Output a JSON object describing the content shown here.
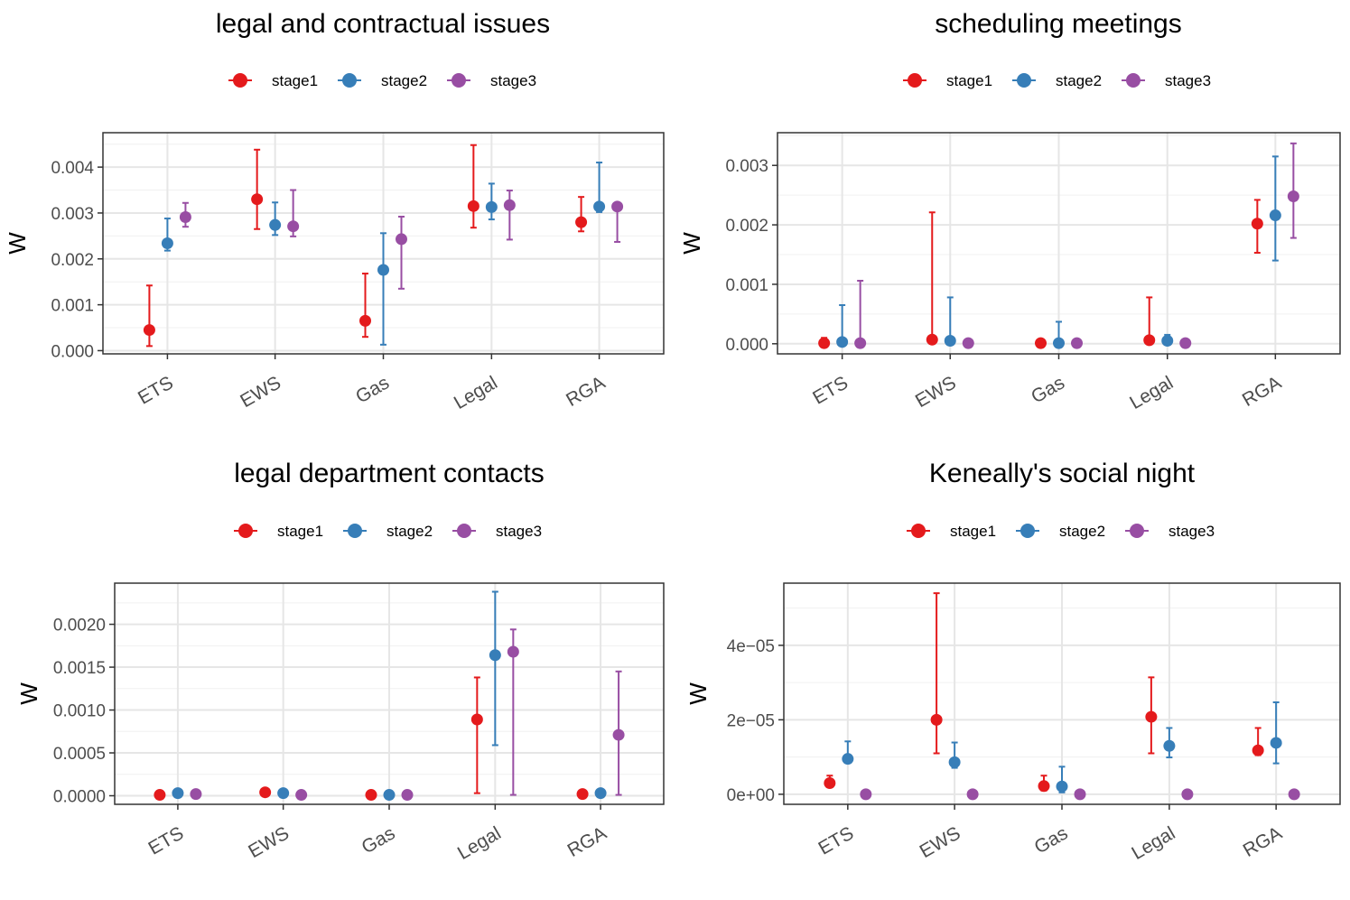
{
  "chart_data": [
    {
      "type": "scatter",
      "title": "legal and contractual issues",
      "ylabel": "W",
      "xlabel": "",
      "categories": [
        "ETS",
        "EWS",
        "Gas",
        "Legal",
        "RGA"
      ],
      "ylim": [
        -7e-05,
        0.00475
      ],
      "yticks": [
        0,
        0.001,
        0.002,
        0.003,
        0.004
      ],
      "ytick_labels": [
        "0.000",
        "0.001",
        "0.002",
        "0.003",
        "0.004"
      ],
      "legend": [
        "stage1",
        "stage2",
        "stage3"
      ],
      "series": [
        {
          "name": "stage1",
          "color": "#e41a1c",
          "values": [
            0.00045,
            0.0033,
            0.00065,
            0.00315,
            0.0028
          ],
          "lower": [
            0.0001,
            0.00265,
            0.0003,
            0.00268,
            0.0026
          ],
          "upper": [
            0.00142,
            0.00438,
            0.00168,
            0.00448,
            0.00335
          ]
        },
        {
          "name": "stage2",
          "color": "#377eb8",
          "values": [
            0.00234,
            0.00274,
            0.00176,
            0.00313,
            0.00314
          ],
          "lower": [
            0.00218,
            0.00252,
            0.00013,
            0.00286,
            0.00302
          ],
          "upper": [
            0.00288,
            0.00323,
            0.00256,
            0.00364,
            0.0041
          ]
        },
        {
          "name": "stage3",
          "color": "#984ea3",
          "values": [
            0.00291,
            0.00271,
            0.00243,
            0.00317,
            0.00314
          ],
          "lower": [
            0.0027,
            0.00249,
            0.00135,
            0.00242,
            0.00237
          ],
          "upper": [
            0.00322,
            0.0035,
            0.00292,
            0.00349,
            0.00314
          ]
        }
      ]
    },
    {
      "type": "scatter",
      "title": "scheduling meetings",
      "ylabel": "W",
      "xlabel": "",
      "categories": [
        "ETS",
        "EWS",
        "Gas",
        "Legal",
        "RGA"
      ],
      "ylim": [
        -0.00017,
        0.00355
      ],
      "yticks": [
        0,
        0.001,
        0.002,
        0.003
      ],
      "ytick_labels": [
        "0.000",
        "0.001",
        "0.002",
        "0.003"
      ],
      "legend": [
        "stage1",
        "stage2",
        "stage3"
      ],
      "series": [
        {
          "name": "stage1",
          "color": "#e41a1c",
          "values": [
            1e-05,
            7e-05,
            1e-05,
            6e-05,
            0.00202
          ],
          "lower": [
            0.0,
            0.0,
            0.0,
            0.0,
            0.00153
          ],
          "upper": [
            0.0001,
            0.00221,
            1e-05,
            0.00078,
            0.00242
          ]
        },
        {
          "name": "stage2",
          "color": "#377eb8",
          "values": [
            3e-05,
            5e-05,
            1e-05,
            5e-05,
            0.00216
          ],
          "lower": [
            0.0,
            0.0,
            0.0,
            0.0,
            0.0014
          ],
          "upper": [
            0.00065,
            0.00078,
            0.00037,
            0.00015,
            0.00315
          ]
        },
        {
          "name": "stage3",
          "color": "#984ea3",
          "values": [
            1e-05,
            1e-05,
            1e-05,
            1e-05,
            0.00248
          ],
          "lower": [
            0.0,
            0.0,
            0.0,
            0.0,
            0.00178
          ],
          "upper": [
            0.00106,
            1e-05,
            1e-05,
            1e-05,
            0.00337
          ]
        }
      ]
    },
    {
      "type": "scatter",
      "title": "legal department contacts",
      "ylabel": "W",
      "xlabel": "",
      "categories": [
        "ETS",
        "EWS",
        "Gas",
        "Legal",
        "RGA"
      ],
      "ylim": [
        -0.0001,
        0.00248
      ],
      "yticks": [
        0,
        0.0005,
        0.001,
        0.0015,
        0.002
      ],
      "ytick_labels": [
        "0.0000",
        "0.0005",
        "0.0010",
        "0.0015",
        "0.0020"
      ],
      "legend": [
        "stage1",
        "stage2",
        "stage3"
      ],
      "series": [
        {
          "name": "stage1",
          "color": "#e41a1c",
          "values": [
            1e-05,
            4e-05,
            1e-05,
            0.00089,
            2e-05
          ],
          "lower": [
            0.0,
            0.0,
            0.0,
            3e-05,
            0.0
          ],
          "upper": [
            1e-05,
            4e-05,
            1e-05,
            0.00138,
            2e-05
          ]
        },
        {
          "name": "stage2",
          "color": "#377eb8",
          "values": [
            3e-05,
            3e-05,
            1e-05,
            0.00164,
            3e-05
          ],
          "lower": [
            0.0,
            0.0,
            0.0,
            0.00059,
            0.0
          ],
          "upper": [
            3e-05,
            3e-05,
            1e-05,
            0.00238,
            3e-05
          ]
        },
        {
          "name": "stage3",
          "color": "#984ea3",
          "values": [
            2e-05,
            1e-05,
            1e-05,
            0.00168,
            0.00071
          ],
          "lower": [
            0.0,
            0.0,
            0.0,
            1e-05,
            1e-05
          ],
          "upper": [
            2e-05,
            1e-05,
            1e-05,
            0.00194,
            0.00145
          ]
        }
      ]
    },
    {
      "type": "scatter",
      "title": "Keneally's social night",
      "ylabel": "W",
      "xlabel": "",
      "categories": [
        "ETS",
        "EWS",
        "Gas",
        "Legal",
        "RGA"
      ],
      "ylim": [
        -2.7e-06,
        5.67e-05
      ],
      "yticks": [
        0,
        2e-05,
        4e-05
      ],
      "ytick_labels": [
        "0e+00",
        "2e−05",
        "4e−05"
      ],
      "legend": [
        "stage1",
        "stage2",
        "stage3"
      ],
      "series": [
        {
          "name": "stage1",
          "color": "#e41a1c",
          "values": [
            3e-06,
            2e-05,
            2.2e-06,
            2.08e-05,
            1.18e-05
          ],
          "lower": [
            2e-06,
            1.1e-05,
            1e-06,
            1.1e-05,
            1.05e-05
          ],
          "upper": [
            5e-06,
            5.4e-05,
            5e-06,
            3.14e-05,
            1.78e-05
          ]
        },
        {
          "name": "stage2",
          "color": "#377eb8",
          "values": [
            9.5e-06,
            8.6e-06,
            2.1e-06,
            1.3e-05,
            1.38e-05
          ],
          "lower": [
            8.7e-06,
            7.1e-06,
            5e-07,
            9.9e-06,
            8.3e-06
          ],
          "upper": [
            1.42e-05,
            1.39e-05,
            7.4e-06,
            1.78e-05,
            2.47e-05
          ]
        },
        {
          "name": "stage3",
          "color": "#984ea3",
          "values": [
            0.0,
            0.0,
            0.0,
            0.0,
            0.0
          ],
          "lower": [
            0.0,
            0.0,
            0.0,
            0.0,
            0.0
          ],
          "upper": [
            0.0,
            0.0,
            0.0,
            0.0,
            0.0
          ]
        }
      ]
    }
  ]
}
